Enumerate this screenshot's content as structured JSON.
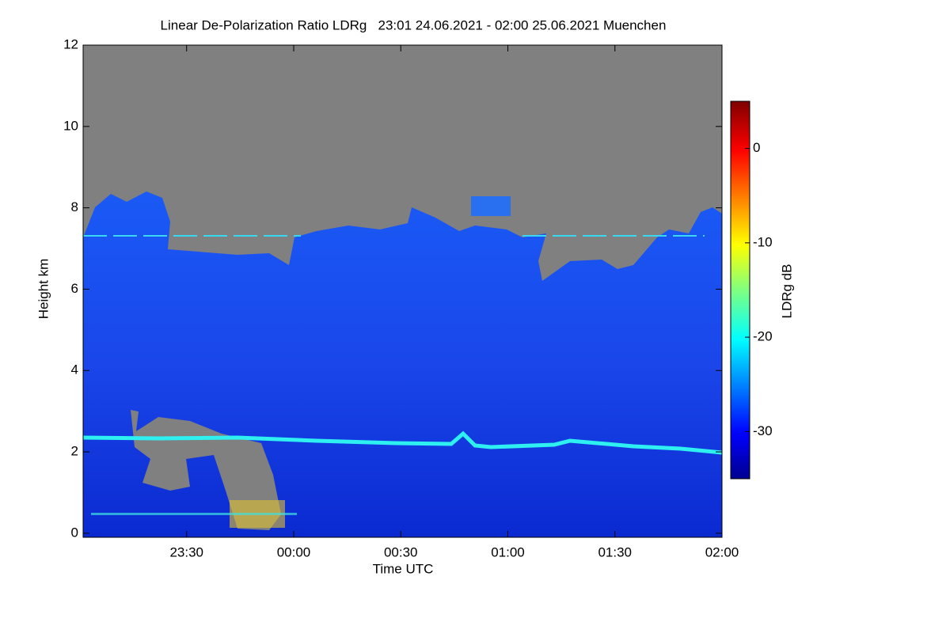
{
  "chart_data": {
    "type": "heatmap",
    "title": "Linear De-Polarization Ratio LDRg   23:01 24.06.2021 - 02:00 25.06.2021 Muenchen",
    "x_label": "Time UTC",
    "y_label": "Height km",
    "colorbar_label": "LDRg dB",
    "xlim": [
      23.0167,
      26.0
    ],
    "xticks": [
      {
        "value": 23.5,
        "label": "23:30"
      },
      {
        "value": 24,
        "label": "00:00"
      },
      {
        "value": 24.5,
        "label": "00:30"
      },
      {
        "value": 25,
        "label": "01:00"
      },
      {
        "value": 25.5,
        "label": "01:30"
      },
      {
        "value": 26,
        "label": "02:00"
      }
    ],
    "ylim": [
      -0.1,
      12
    ],
    "yticks": [
      0,
      2,
      4,
      6,
      8,
      10,
      12
    ],
    "clim": [
      -35,
      5
    ],
    "cticks": [
      -30,
      -20,
      -10,
      0
    ]
  }
}
